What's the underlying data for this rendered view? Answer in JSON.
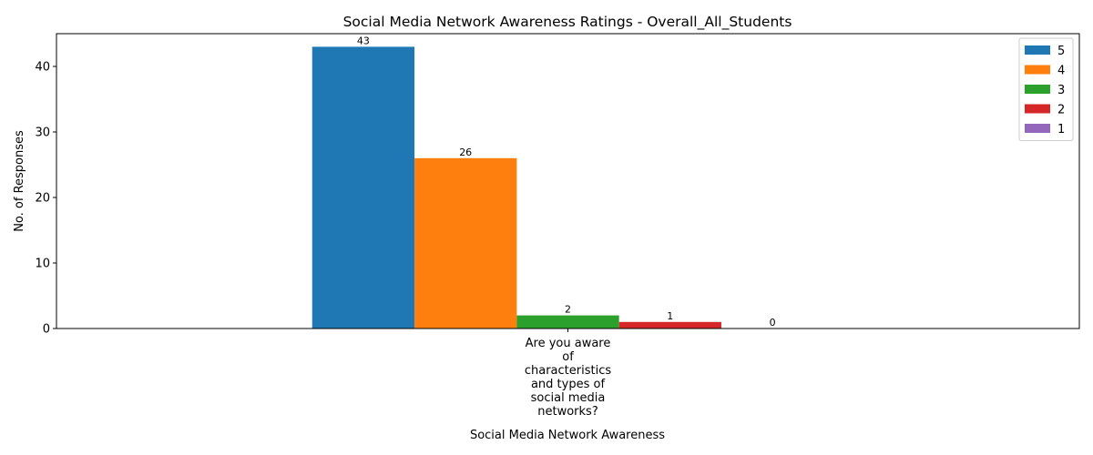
{
  "chart_data": {
    "type": "bar",
    "title": "Social Media Network Awareness Ratings - Overall_All_Students",
    "xlabel": "Social Media Network Awareness",
    "ylabel": "No. of Responses",
    "categories": [
      "Are you aware of characteristics and types of social media networks?"
    ],
    "category_label_lines": [
      "Are you aware",
      "of",
      "characteristics",
      "and types of",
      "social media",
      "networks?"
    ],
    "ylim": [
      0,
      45
    ],
    "yticks": [
      0,
      10,
      20,
      30,
      40
    ],
    "grid": false,
    "legend_position": "top-right",
    "series": [
      {
        "name": "5",
        "values": [
          43
        ],
        "color": "#1f77b4"
      },
      {
        "name": "4",
        "values": [
          26
        ],
        "color": "#ff7f0e"
      },
      {
        "name": "3",
        "values": [
          2
        ],
        "color": "#2ca02c"
      },
      {
        "name": "2",
        "values": [
          1
        ],
        "color": "#d62728"
      },
      {
        "name": "1",
        "values": [
          0
        ],
        "color": "#9467bd"
      }
    ]
  }
}
